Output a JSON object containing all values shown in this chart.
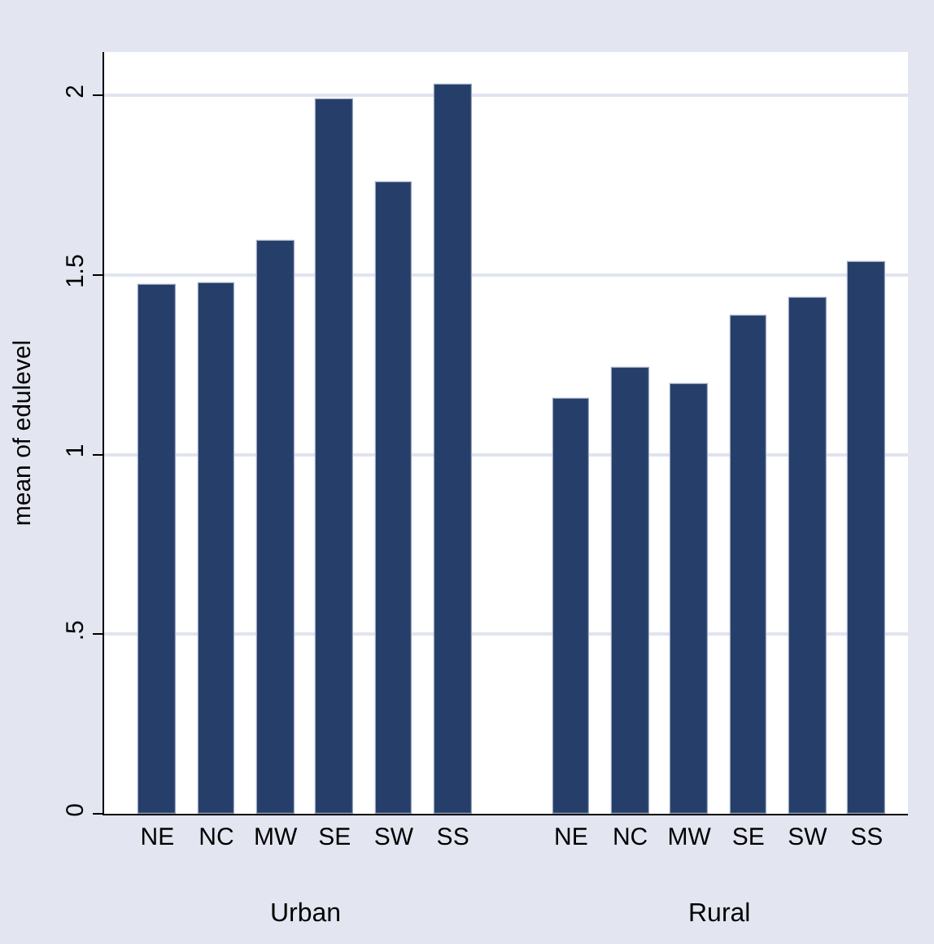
{
  "chart_data": {
    "type": "bar",
    "ylabel": "mean of edulevel",
    "categories": [
      "NE",
      "NC",
      "MW",
      "SE",
      "SW",
      "SS",
      "NE",
      "NC",
      "MW",
      "SE",
      "SW",
      "SS"
    ],
    "values": [
      1.473,
      1.477,
      1.595,
      1.988,
      1.759,
      2.029,
      1.153,
      1.239,
      1.195,
      1.386,
      1.437,
      1.536
    ],
    "color": "#263f6a",
    "annotations": [
      "Urban",
      "Rural"
    ],
    "ylim": [
      0,
      2.12
    ],
    "yticks": [
      0,
      {
        "value": 0.5,
        "label": ".5"
      },
      1,
      1.5,
      2
    ],
    "grid": "y"
  }
}
